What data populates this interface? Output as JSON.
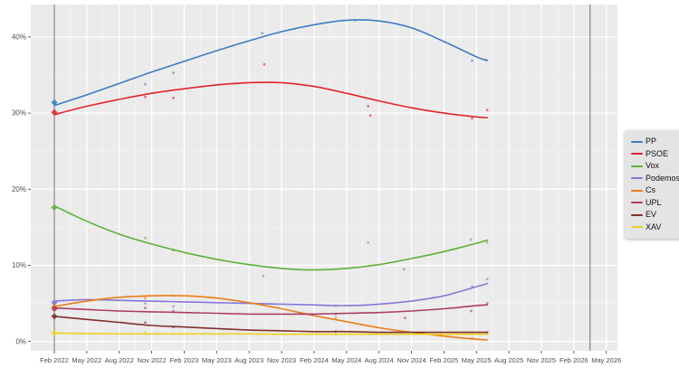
{
  "chart_data": {
    "type": "scatter",
    "subtype": "poll-scatter-with-smoothed-trend-lines",
    "title": "",
    "xlabel": "",
    "ylabel": "",
    "x_axis": {
      "unit": "date-quarterly",
      "tick_labels": [
        "Feb 2022",
        "May 2022",
        "Aug 2022",
        "Nov 2022",
        "Feb 2023",
        "May 2023",
        "Aug 2023",
        "Nov 2023",
        "Feb 2024",
        "May 2024",
        "Aug 2024",
        "Nov 2024",
        "Feb 2025",
        "May 2025",
        "Aug 2025",
        "Nov 2025",
        "Feb 2026",
        "May 2026"
      ],
      "tick_months": [
        0,
        3,
        6,
        9,
        12,
        15,
        18,
        21,
        24,
        27,
        30,
        33,
        36,
        39,
        42,
        45,
        48,
        51
      ]
    },
    "y_axis": {
      "tick_labels": [
        "0%",
        "10%",
        "20%",
        "30%",
        "40%"
      ],
      "tick_values": [
        0,
        10,
        20,
        30,
        40
      ],
      "range_pct": [
        -1.2,
        44.3
      ],
      "grid": true
    },
    "reference_lines": [
      {
        "name": "election-2022-marker",
        "month": 0
      },
      {
        "name": "election-2026-marker",
        "month": 49.5
      }
    ],
    "legend_position": "right",
    "series": [
      {
        "name": "PP",
        "color": "#3b7cc4",
        "election_result_pct": 31.4,
        "trend": [
          [
            0,
            31.0
          ],
          [
            3,
            32.4
          ],
          [
            6,
            33.9
          ],
          [
            9,
            35.4
          ],
          [
            12,
            36.8
          ],
          [
            15,
            38.2
          ],
          [
            18,
            39.5
          ],
          [
            21,
            40.7
          ],
          [
            24,
            41.6
          ],
          [
            27,
            42.2
          ],
          [
            30,
            42.1
          ],
          [
            33,
            41.2
          ],
          [
            36,
            39.4
          ],
          [
            39,
            37.4
          ],
          [
            40,
            36.9
          ]
        ],
        "polls": [
          [
            8.4,
            33.8
          ],
          [
            11.0,
            35.3
          ],
          [
            19.2,
            40.5
          ],
          [
            27.8,
            42.2
          ],
          [
            38.6,
            36.9
          ],
          [
            39.9,
            37.0
          ]
        ]
      },
      {
        "name": "PSOE",
        "color": "#e3242b",
        "election_result_pct": 30.1,
        "trend": [
          [
            0,
            29.8
          ],
          [
            3,
            30.9
          ],
          [
            6,
            31.8
          ],
          [
            9,
            32.6
          ],
          [
            12,
            33.2
          ],
          [
            15,
            33.7
          ],
          [
            18,
            34.0
          ],
          [
            21,
            34.0
          ],
          [
            24,
            33.5
          ],
          [
            27,
            32.6
          ],
          [
            30,
            31.6
          ],
          [
            33,
            30.7
          ],
          [
            36,
            30.0
          ],
          [
            39,
            29.5
          ],
          [
            40,
            29.4
          ]
        ],
        "polls": [
          [
            8.4,
            32.1
          ],
          [
            11.0,
            32.0
          ],
          [
            19.4,
            36.4
          ],
          [
            29.0,
            30.9
          ],
          [
            29.2,
            29.7
          ],
          [
            38.6,
            29.3
          ],
          [
            40.0,
            30.4
          ]
        ]
      },
      {
        "name": "Vox",
        "color": "#5bb234",
        "election_result_pct": 17.6,
        "trend": [
          [
            0,
            17.8
          ],
          [
            3,
            15.8
          ],
          [
            6,
            14.1
          ],
          [
            9,
            12.8
          ],
          [
            12,
            11.7
          ],
          [
            15,
            10.8
          ],
          [
            18,
            10.1
          ],
          [
            21,
            9.6
          ],
          [
            24,
            9.4
          ],
          [
            27,
            9.6
          ],
          [
            30,
            10.1
          ],
          [
            33,
            10.9
          ],
          [
            36,
            11.8
          ],
          [
            39,
            12.9
          ],
          [
            40,
            13.3
          ]
        ],
        "polls": [
          [
            8.4,
            13.6
          ],
          [
            11.0,
            12.0
          ],
          [
            19.3,
            8.6
          ],
          [
            29.0,
            13.0
          ],
          [
            32.3,
            9.5
          ],
          [
            38.5,
            13.4
          ],
          [
            40.0,
            13.0
          ]
        ]
      },
      {
        "name": "Podemos",
        "color": "#8677d9",
        "election_result_pct": 5.1,
        "trend": [
          [
            0,
            5.3
          ],
          [
            3,
            5.5
          ],
          [
            6,
            5.4
          ],
          [
            9,
            5.3
          ],
          [
            12,
            5.2
          ],
          [
            15,
            5.1
          ],
          [
            18,
            5.0
          ],
          [
            21,
            4.9
          ],
          [
            24,
            4.8
          ],
          [
            27,
            4.7
          ],
          [
            30,
            4.9
          ],
          [
            33,
            5.3
          ],
          [
            36,
            6.0
          ],
          [
            39,
            7.2
          ],
          [
            40,
            7.6
          ]
        ],
        "polls": [
          [
            8.4,
            5.0
          ],
          [
            11.0,
            4.6
          ],
          [
            26.0,
            4.7
          ],
          [
            38.6,
            7.2
          ],
          [
            40.0,
            8.2
          ]
        ]
      },
      {
        "name": "Cs",
        "color": "#eb7d14",
        "election_result_pct": 4.5,
        "trend": [
          [
            0,
            4.6
          ],
          [
            3,
            5.3
          ],
          [
            6,
            5.8
          ],
          [
            9,
            6.0
          ],
          [
            12,
            6.0
          ],
          [
            15,
            5.7
          ],
          [
            18,
            5.1
          ],
          [
            21,
            4.3
          ],
          [
            24,
            3.4
          ],
          [
            27,
            2.6
          ],
          [
            30,
            1.8
          ],
          [
            33,
            1.2
          ],
          [
            36,
            0.7
          ],
          [
            39,
            0.3
          ],
          [
            40,
            0.2
          ]
        ],
        "polls": [
          [
            8.4,
            5.7
          ],
          [
            11.0,
            6.0
          ],
          [
            26.0,
            3.1
          ],
          [
            38.6,
            0.4
          ]
        ]
      },
      {
        "name": "UPL",
        "color": "#ad3c64",
        "election_result_pct": 4.3,
        "trend": [
          [
            0,
            4.4
          ],
          [
            3,
            4.2
          ],
          [
            6,
            4.0
          ],
          [
            9,
            3.9
          ],
          [
            12,
            3.8
          ],
          [
            15,
            3.7
          ],
          [
            18,
            3.6
          ],
          [
            21,
            3.6
          ],
          [
            24,
            3.6
          ],
          [
            27,
            3.7
          ],
          [
            30,
            3.8
          ],
          [
            33,
            4.0
          ],
          [
            36,
            4.3
          ],
          [
            39,
            4.7
          ],
          [
            40,
            4.8
          ]
        ],
        "polls": [
          [
            8.4,
            4.4
          ],
          [
            11.0,
            4.0
          ],
          [
            26.0,
            3.6
          ],
          [
            32.4,
            3.1
          ],
          [
            38.5,
            4.0
          ],
          [
            40.0,
            5.0
          ]
        ]
      },
      {
        "name": "EV",
        "color": "#7e302c",
        "election_result_pct": 3.3,
        "trend": [
          [
            0,
            3.3
          ],
          [
            3,
            2.9
          ],
          [
            6,
            2.5
          ],
          [
            9,
            2.1
          ],
          [
            12,
            1.9
          ],
          [
            15,
            1.7
          ],
          [
            18,
            1.5
          ],
          [
            21,
            1.4
          ],
          [
            24,
            1.3
          ],
          [
            27,
            1.3
          ],
          [
            30,
            1.2
          ],
          [
            33,
            1.2
          ],
          [
            36,
            1.2
          ],
          [
            39,
            1.2
          ],
          [
            40,
            1.2
          ]
        ],
        "polls": [
          [
            8.4,
            2.5
          ],
          [
            11.0,
            1.9
          ],
          [
            26.0,
            1.3
          ],
          [
            40.0,
            1.2
          ]
        ]
      },
      {
        "name": "XAV",
        "color": "#ecd223",
        "election_result_pct": 1.1,
        "trend": [
          [
            0,
            1.1
          ],
          [
            3,
            1.05
          ],
          [
            6,
            1.0
          ],
          [
            9,
            1.0
          ],
          [
            12,
            1.0
          ],
          [
            15,
            1.0
          ],
          [
            18,
            1.0
          ],
          [
            21,
            0.95
          ],
          [
            24,
            0.95
          ],
          [
            27,
            0.95
          ],
          [
            30,
            0.95
          ],
          [
            33,
            0.95
          ],
          [
            36,
            0.95
          ],
          [
            39,
            0.95
          ],
          [
            40,
            0.95
          ]
        ],
        "polls": [
          [
            8.4,
            1.2
          ],
          [
            26.0,
            0.95
          ],
          [
            40.0,
            0.95
          ]
        ]
      }
    ],
    "style_colors": {
      "plot_background": "#ebebeb",
      "major_grid": "#ffffff",
      "minor_grid": "#f5f5f5",
      "reference_line": "#6e6e6e",
      "axis_text": "#4d4d4d",
      "legend_background": "#e4e4e4"
    }
  }
}
